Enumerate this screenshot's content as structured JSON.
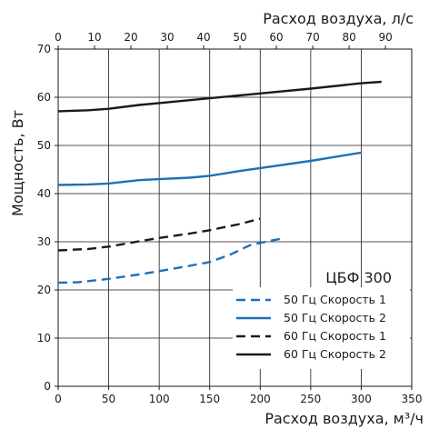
{
  "chart_data": {
    "type": "line",
    "model": "ЦБФ 300",
    "x_bottom": {
      "label": "Расход воздуха, м³/ч",
      "ticks": [
        0,
        50,
        100,
        150,
        200,
        250,
        300,
        350
      ],
      "lim": [
        0,
        350
      ]
    },
    "x_top": {
      "label": "Расход воздуха, л/с",
      "ticks": [
        0,
        10,
        20,
        30,
        40,
        50,
        60,
        70,
        80,
        90
      ],
      "factor": 3.6
    },
    "y": {
      "label": "Мощность, Вт",
      "ticks": [
        0,
        10,
        20,
        30,
        40,
        50,
        60,
        70
      ],
      "lim": [
        0,
        70
      ]
    },
    "grid": true,
    "legend_position": "bottom-right",
    "series": [
      {
        "name": "50 Гц Скорость 1",
        "color": "#1f6fb5",
        "dash": "dashed",
        "points": [
          [
            0,
            21.5
          ],
          [
            20,
            21.6
          ],
          [
            50,
            22.3
          ],
          [
            80,
            23.2
          ],
          [
            100,
            23.9
          ],
          [
            130,
            25.0
          ],
          [
            150,
            25.8
          ],
          [
            170,
            27.3
          ],
          [
            190,
            29.3
          ],
          [
            210,
            30.2
          ],
          [
            220,
            30.6
          ]
        ]
      },
      {
        "name": "50 Гц Скорость 2",
        "color": "#1f6fb5",
        "dash": "solid",
        "points": [
          [
            0,
            41.8
          ],
          [
            30,
            41.9
          ],
          [
            50,
            42.1
          ],
          [
            80,
            42.8
          ],
          [
            100,
            43.0
          ],
          [
            130,
            43.3
          ],
          [
            150,
            43.7
          ],
          [
            180,
            44.7
          ],
          [
            200,
            45.3
          ],
          [
            250,
            46.8
          ],
          [
            300,
            48.5
          ]
        ]
      },
      {
        "name": "60 Гц Скорость 1",
        "color": "#1a1a1a",
        "dash": "dashed",
        "points": [
          [
            0,
            28.2
          ],
          [
            30,
            28.5
          ],
          [
            50,
            29.0
          ],
          [
            80,
            30.1
          ],
          [
            100,
            30.8
          ],
          [
            130,
            31.7
          ],
          [
            150,
            32.4
          ],
          [
            180,
            33.7
          ],
          [
            200,
            34.8
          ]
        ]
      },
      {
        "name": "60 Гц Скорость 2",
        "color": "#1a1a1a",
        "dash": "solid",
        "points": [
          [
            0,
            57.1
          ],
          [
            30,
            57.3
          ],
          [
            50,
            57.6
          ],
          [
            80,
            58.4
          ],
          [
            100,
            58.8
          ],
          [
            150,
            59.8
          ],
          [
            200,
            60.8
          ],
          [
            250,
            61.8
          ],
          [
            300,
            62.9
          ],
          [
            320,
            63.2
          ]
        ]
      }
    ]
  }
}
